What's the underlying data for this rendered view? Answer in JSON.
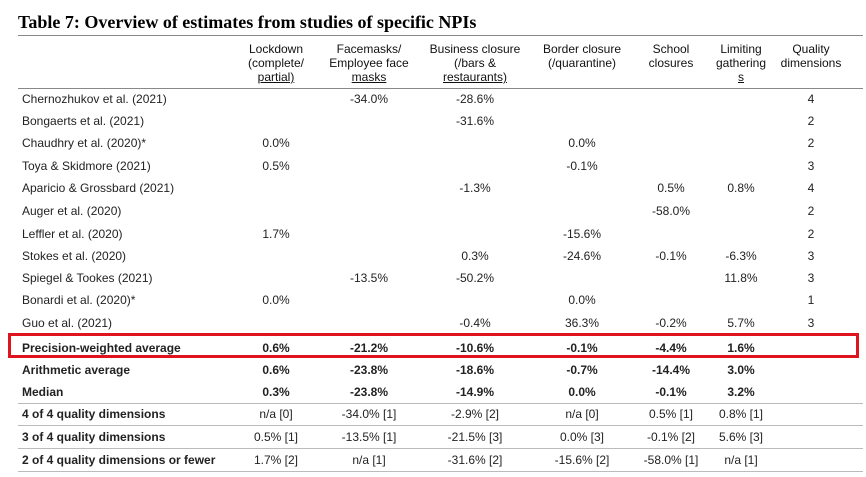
{
  "title": "Table 7: Overview of estimates from studies of specific NPIs",
  "table": {
    "headers": [
      [
        "Lockdown",
        "(complete/",
        "partial)"
      ],
      [
        "Facemasks/",
        "Employee face",
        "masks"
      ],
      [
        "Business closure",
        "(/bars &",
        "restaurants)"
      ],
      [
        "Border closure",
        "(/quarantine)"
      ],
      [
        "School",
        "closures"
      ],
      [
        "Limiting",
        "gathering",
        "s"
      ],
      [
        "Quality",
        "dimensions"
      ]
    ],
    "rows": [
      [
        "Chernozhukov et al. (2021)",
        null,
        "-34.0%",
        "-28.6%",
        null,
        null,
        null,
        "4"
      ],
      [
        "Bongaerts et al. (2021)",
        null,
        null,
        "-31.6%",
        null,
        null,
        null,
        "2"
      ],
      [
        "Chaudhry et al. (2020)*",
        "0.0%",
        null,
        null,
        "0.0%",
        null,
        null,
        "2"
      ],
      [
        "Toya & Skidmore (2021)",
        "0.5%",
        null,
        null,
        "-0.1%",
        null,
        null,
        "3"
      ],
      [
        "Aparicio & Grossbard (2021)",
        null,
        null,
        "-1.3%",
        null,
        "0.5%",
        "0.8%",
        "4"
      ],
      [
        "Auger et al. (2020)",
        null,
        null,
        null,
        null,
        "-58.0%",
        null,
        "2"
      ],
      [
        "Leffler et al. (2020)",
        "1.7%",
        null,
        null,
        "-15.6%",
        null,
        null,
        "2"
      ],
      [
        "Stokes et al. (2020)",
        null,
        null,
        "0.3%",
        "-24.6%",
        "-0.1%",
        "-6.3%",
        "3"
      ],
      [
        "Spiegel & Tookes (2021)",
        null,
        "-13.5%",
        "-50.2%",
        null,
        null,
        "11.8%",
        "3"
      ],
      [
        "Bonardi et al. (2020)*",
        "0.0%",
        null,
        null,
        "0.0%",
        null,
        null,
        "1"
      ],
      [
        "Guo et al. (2021)",
        null,
        null,
        "-0.4%",
        "36.3%",
        "-0.2%",
        "5.7%",
        "3"
      ],
      [
        "Precision-weighted average",
        "0.6%",
        "-21.2%",
        "-10.6%",
        "-0.1%",
        "-4.4%",
        "1.6%",
        null
      ],
      [
        "Arithmetic average",
        "0.6%",
        "-23.8%",
        "-18.6%",
        "-0.7%",
        "-14.4%",
        "3.0%",
        null
      ],
      [
        "Median",
        "0.3%",
        "-23.8%",
        "-14.9%",
        "0.0%",
        "-0.1%",
        "3.2%",
        null
      ],
      [
        "4 of 4 quality dimensions",
        "n/a [0]",
        "-34.0% [1]",
        "-2.9% [2]",
        "n/a [0]",
        "0.5% [1]",
        "0.8% [1]",
        null
      ],
      [
        "3 of 4 quality dimensions",
        "0.5% [1]",
        "-13.5% [1]",
        "-21.5% [3]",
        "0.0% [3]",
        "-0.1% [2]",
        "5.6% [3]",
        null
      ],
      [
        "2 of 4 quality dimensions or fewer",
        "1.7% [2]",
        "n/a [1]",
        "-31.6% [2]",
        "-15.6% [2]",
        "-58.0% [1]",
        "n/a [1]",
        null
      ]
    ]
  }
}
